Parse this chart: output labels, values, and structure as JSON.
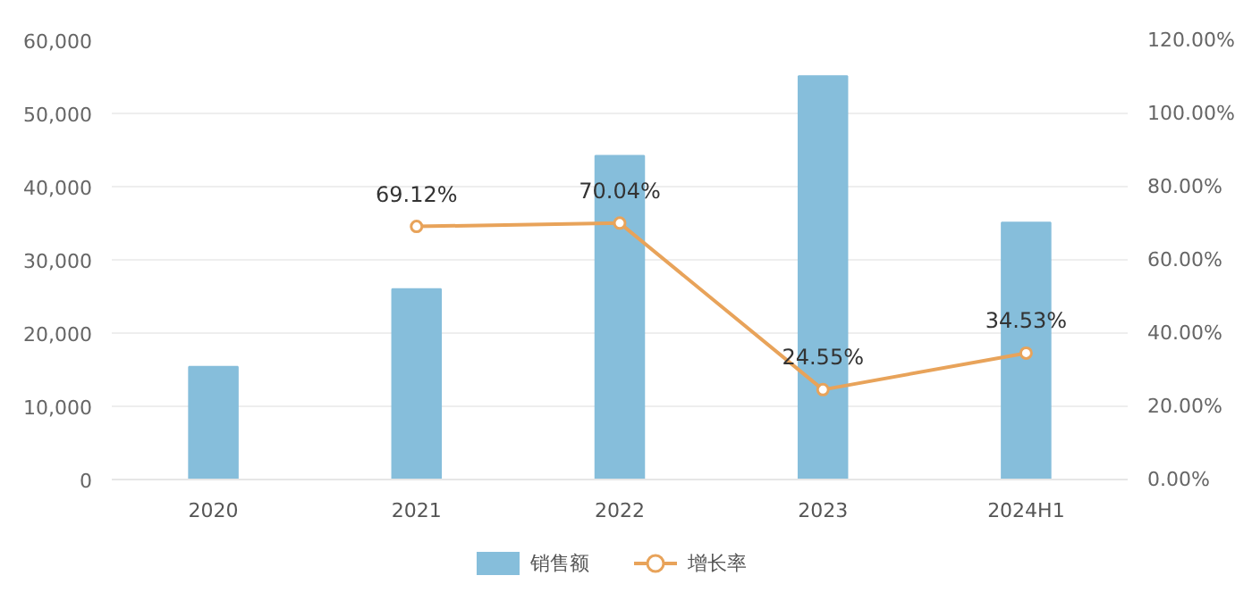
{
  "chart_data": {
    "type": "bar",
    "categories": [
      "2020",
      "2021",
      "2022",
      "2023",
      "2024H1"
    ],
    "series": [
      {
        "name": "销售额",
        "color": "#86bedb",
        "values": [
          15400,
          26000,
          44200,
          55100,
          35100
        ]
      },
      {
        "name": "增长率",
        "type": "line",
        "axis": "y2",
        "color": "#e8a35a",
        "values": [
          null,
          69.12,
          70.04,
          24.55,
          34.53
        ],
        "value_labels": [
          null,
          "69.12%",
          "70.04%",
          "24.55%",
          "34.53%"
        ]
      }
    ],
    "ylim": [
      0,
      60000
    ],
    "yticks": [
      0,
      {
        "value": 10000,
        "label": "10,000"
      },
      {
        "value": 20000,
        "label": "20,000"
      },
      {
        "value": 30000,
        "label": "30,000"
      },
      {
        "value": 40000,
        "label": "40,000"
      },
      {
        "value": 50000,
        "label": "50,000"
      },
      {
        "value": 60000,
        "label": "60,000"
      }
    ],
    "y2lim": [
      0,
      120
    ],
    "y2ticks": [
      {
        "value": 0,
        "label": "0.00%"
      },
      {
        "value": 20,
        "label": "20.00%"
      },
      {
        "value": 40,
        "label": "40.00%"
      },
      {
        "value": 60,
        "label": "60.00%"
      },
      {
        "value": 80,
        "label": "80.00%"
      },
      {
        "value": 100,
        "label": "100.00%"
      },
      {
        "value": 120,
        "label": "120.00%"
      }
    ],
    "grid": "y",
    "legend": "bottom",
    "marker": "circle"
  }
}
